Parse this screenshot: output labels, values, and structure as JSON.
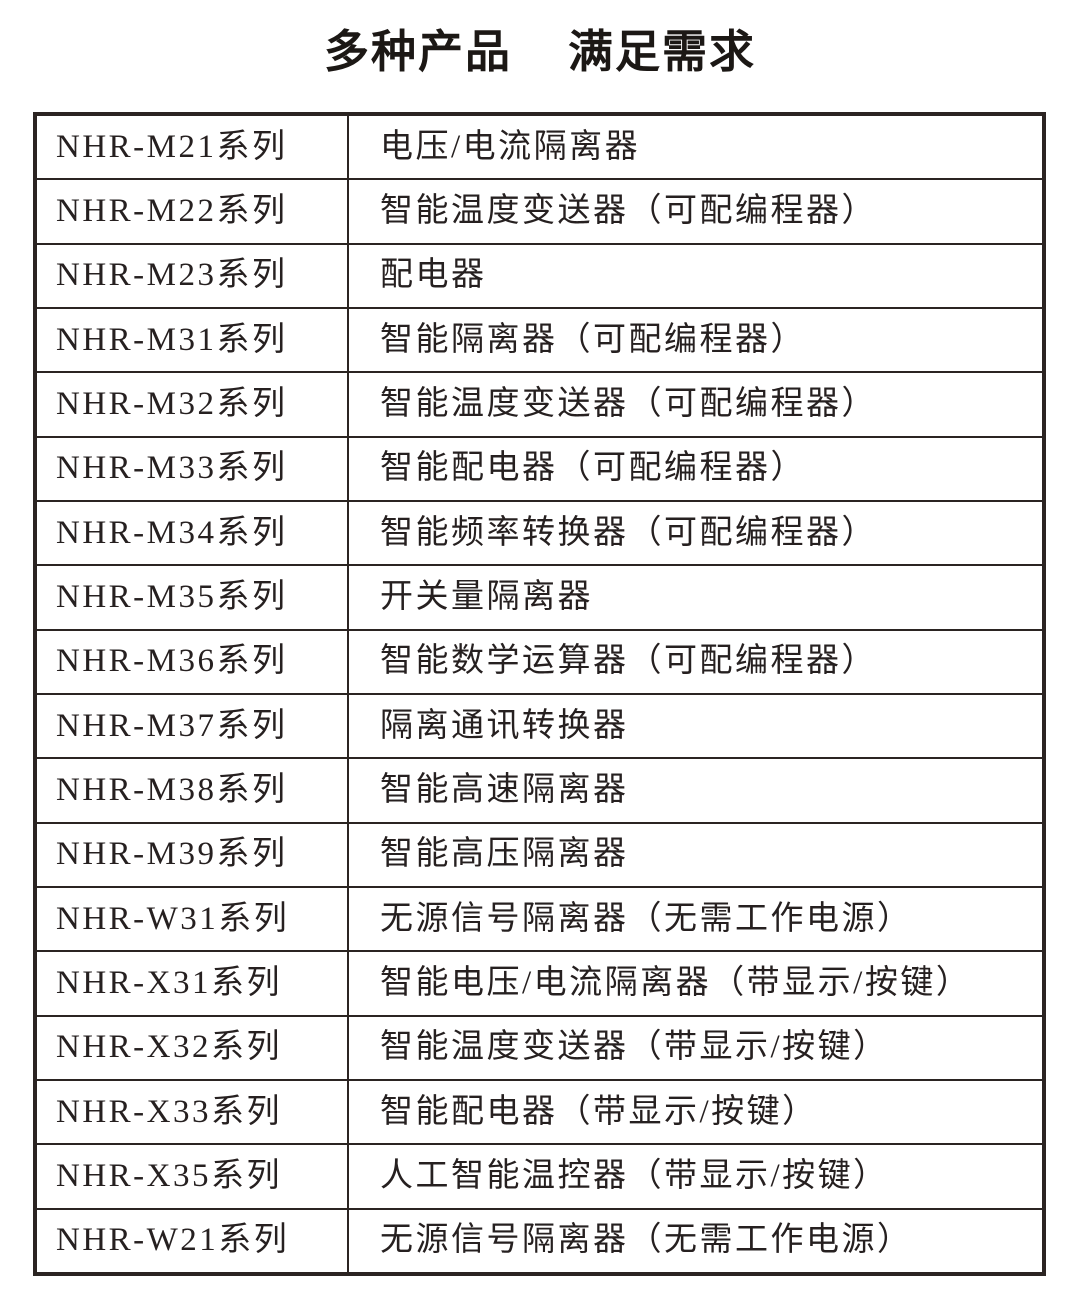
{
  "title": {
    "part1": "多种产品",
    "part2": "满足需求"
  },
  "table": {
    "rows": [
      {
        "series": "NHR-M21系列",
        "description": "电压/电流隔离器"
      },
      {
        "series": "NHR-M22系列",
        "description": "智能温度变送器（可配编程器）"
      },
      {
        "series": "NHR-M23系列",
        "description": "配电器"
      },
      {
        "series": "NHR-M31系列",
        "description": "智能隔离器（可配编程器）"
      },
      {
        "series": "NHR-M32系列",
        "description": "智能温度变送器（可配编程器）"
      },
      {
        "series": "NHR-M33系列",
        "description": "智能配电器（可配编程器）"
      },
      {
        "series": "NHR-M34系列",
        "description": "智能频率转换器（可配编程器）"
      },
      {
        "series": "NHR-M35系列",
        "description": "开关量隔离器"
      },
      {
        "series": "NHR-M36系列",
        "description": "智能数学运算器（可配编程器）"
      },
      {
        "series": "NHR-M37系列",
        "description": "隔离通讯转换器"
      },
      {
        "series": "NHR-M38系列",
        "description": "智能高速隔离器"
      },
      {
        "series": "NHR-M39系列",
        "description": "智能高压隔离器"
      },
      {
        "series": "NHR-W31系列",
        "description": "无源信号隔离器（无需工作电源）"
      },
      {
        "series": "NHR-X31系列",
        "description": "智能电压/电流隔离器（带显示/按键）"
      },
      {
        "series": "NHR-X32系列",
        "description": "智能温度变送器（带显示/按键）"
      },
      {
        "series": "NHR-X33系列",
        "description": "智能配电器（带显示/按键）"
      },
      {
        "series": "NHR-X35系列",
        "description": "人工智能温控器（带显示/按键）"
      },
      {
        "series": "NHR-W21系列",
        "description": "无源信号隔离器（无需工作电源）"
      }
    ]
  },
  "colors": {
    "text": "#262020",
    "border": "#2b2422",
    "background": "#ffffff"
  }
}
